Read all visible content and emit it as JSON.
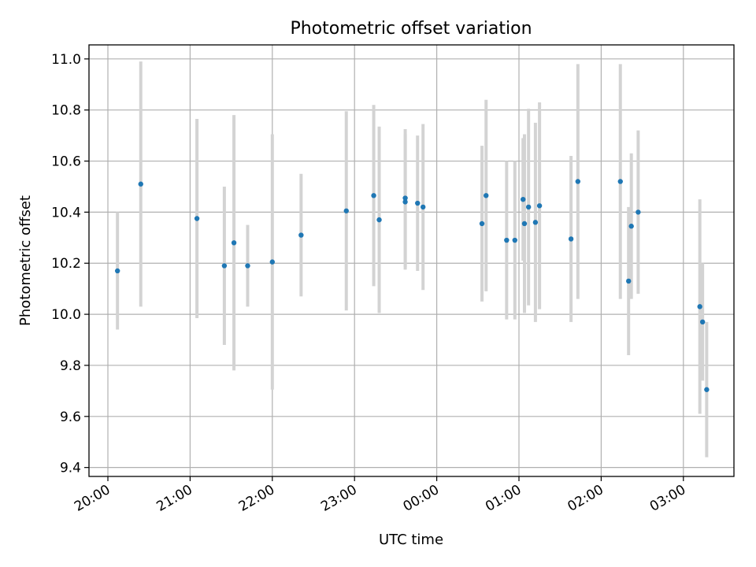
{
  "chart_data": {
    "type": "scatter",
    "title": "Photometric offset variation",
    "xlabel": "UTC time",
    "ylabel": "Photometric offset",
    "ylim": [
      9.365,
      11.055
    ],
    "yticks": [
      "9.4",
      "9.6",
      "9.8",
      "10.0",
      "10.2",
      "10.4",
      "10.6",
      "10.8",
      "11.0"
    ],
    "xticks": [
      "20:00",
      "21:00",
      "22:00",
      "23:00",
      "00:00",
      "01:00",
      "02:00",
      "03:00"
    ],
    "grid": true,
    "colors": {
      "point": "#1f77b4",
      "errorbar": "#d3d3d3",
      "grid": "#b0b0b0"
    },
    "series": [
      {
        "x": [
          "20:07",
          "20:24",
          "21:05",
          "21:25",
          "21:32",
          "21:42",
          "22:00",
          "22:21",
          "22:54",
          "23:14",
          "23:18",
          "23:37",
          "23:37",
          "23:46",
          "23:50",
          "00:33",
          "00:36",
          "00:51",
          "00:57",
          "01:03",
          "01:04",
          "01:07",
          "01:12",
          "01:15",
          "01:38",
          "01:43",
          "02:14",
          "02:20",
          "02:22",
          "02:27",
          "03:12",
          "03:14",
          "03:17"
        ],
        "y": [
          10.17,
          10.51,
          10.375,
          10.19,
          10.28,
          10.19,
          10.205,
          10.31,
          10.405,
          10.465,
          10.37,
          10.455,
          10.44,
          10.435,
          10.42,
          10.355,
          10.465,
          10.29,
          10.29,
          10.45,
          10.355,
          10.42,
          10.36,
          10.425,
          10.295,
          10.52,
          10.52,
          10.13,
          10.345,
          10.4,
          10.03,
          9.97,
          9.705
        ],
        "yerr": [
          0.23,
          0.48,
          0.39,
          0.31,
          0.5,
          0.16,
          0.5,
          0.24,
          0.39,
          0.355,
          0.365,
          0.27,
          0.265,
          0.265,
          0.325,
          0.305,
          0.375,
          0.31,
          0.31,
          0.24,
          0.35,
          0.385,
          0.39,
          0.405,
          0.325,
          0.46,
          0.46,
          0.29,
          0.285,
          0.32,
          0.42,
          0.23,
          0.265
        ]
      }
    ]
  }
}
